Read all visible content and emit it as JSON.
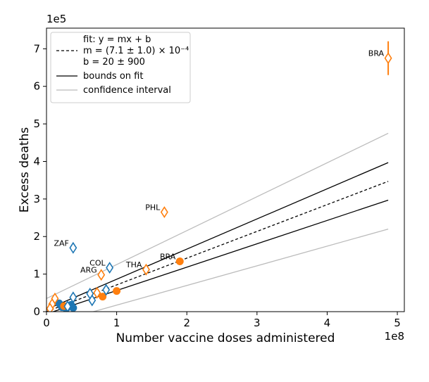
{
  "chart_data": {
    "type": "scatter",
    "title": "",
    "xlabel": "Number vaccine doses administered",
    "ylabel": "Excess deaths",
    "x_multiplier": "1e8",
    "y_multiplier": "1e5",
    "xlim": [
      0,
      5.1
    ],
    "ylim": [
      0,
      7.55
    ],
    "xticks": [
      "0",
      "1",
      "2",
      "3",
      "4",
      "5"
    ],
    "yticks": [
      "0",
      "1",
      "2",
      "3",
      "4",
      "5",
      "6",
      "7"
    ],
    "grid": false,
    "legend_placement": "top-left",
    "colors": {
      "blue": "#1f77b4",
      "orange": "#ff7f0e",
      "bounds": "#000000",
      "confidence": "#bbbbbb"
    },
    "legend": [
      {
        "style": "dashed",
        "lines": [
          "fit: y = mx + b",
          "m = (7.1 ± 1.0) × 10⁻⁴",
          "b = 20 ± 900"
        ]
      },
      {
        "style": "solid-black",
        "lines": [
          "bounds on fit"
        ]
      },
      {
        "style": "solid-gray",
        "lines": [
          "confidence interval"
        ]
      }
    ],
    "lines": {
      "fit": {
        "x": [
          0,
          4.87
        ],
        "y": [
          0.0,
          3.47
        ]
      },
      "upper_bound": {
        "x": [
          0,
          4.87
        ],
        "y": [
          0.06,
          3.97
        ]
      },
      "lower_bound": {
        "x": [
          0,
          4.87
        ],
        "y": [
          -0.06,
          2.97
        ]
      },
      "ci_upper": {
        "x": [
          0,
          4.87
        ],
        "y": [
          0.35,
          4.75
        ]
      },
      "ci_lower": {
        "x": [
          0,
          4.87
        ],
        "y": [
          -0.35,
          2.2
        ]
      }
    },
    "series": [
      {
        "color": "blue",
        "marker": "circle",
        "points": [
          {
            "x": 0.18,
            "y": 0.22
          },
          {
            "x": 0.22,
            "y": 0.12
          },
          {
            "x": 0.28,
            "y": 0.08
          },
          {
            "x": 0.35,
            "y": 0.18
          },
          {
            "x": 0.38,
            "y": 0.1
          }
        ]
      },
      {
        "color": "orange",
        "marker": "circle",
        "points": [
          {
            "x": 0.25,
            "y": 0.15
          },
          {
            "x": 0.8,
            "y": 0.4
          },
          {
            "x": 1.0,
            "y": 0.55
          },
          {
            "x": 1.9,
            "y": 1.34
          }
        ]
      },
      {
        "color": "blue",
        "marker": "diamond-open",
        "points": [
          {
            "x": 0.38,
            "y": 1.7
          },
          {
            "x": 0.9,
            "y": 1.17
          },
          {
            "x": 0.62,
            "y": 0.48
          },
          {
            "x": 0.65,
            "y": 0.3
          },
          {
            "x": 0.38,
            "y": 0.38
          },
          {
            "x": 0.85,
            "y": 0.58
          },
          {
            "x": 0.3,
            "y": 0.14
          }
        ]
      },
      {
        "color": "orange",
        "marker": "diamond-open",
        "points": [
          {
            "x": 4.87,
            "y": 6.75,
            "err": 0.45
          },
          {
            "x": 1.68,
            "y": 2.65
          },
          {
            "x": 1.42,
            "y": 1.12
          },
          {
            "x": 0.78,
            "y": 0.98
          },
          {
            "x": 0.72,
            "y": 0.5
          },
          {
            "x": 0.12,
            "y": 0.35
          },
          {
            "x": 0.08,
            "y": 0.2
          },
          {
            "x": 0.05,
            "y": 0.08
          }
        ]
      }
    ],
    "annotations": [
      {
        "text": "BRA",
        "x": 4.87,
        "y": 6.75
      },
      {
        "text": "PHL",
        "x": 1.68,
        "y": 2.65
      },
      {
        "text": "ZAF",
        "x": 0.38,
        "y": 1.7
      },
      {
        "text": "COL",
        "x": 0.9,
        "y": 1.17
      },
      {
        "text": "ARG",
        "x": 0.78,
        "y": 0.98
      },
      {
        "text": "THA",
        "x": 1.42,
        "y": 1.12
      },
      {
        "text": "BRA",
        "x": 1.9,
        "y": 1.34
      }
    ]
  }
}
